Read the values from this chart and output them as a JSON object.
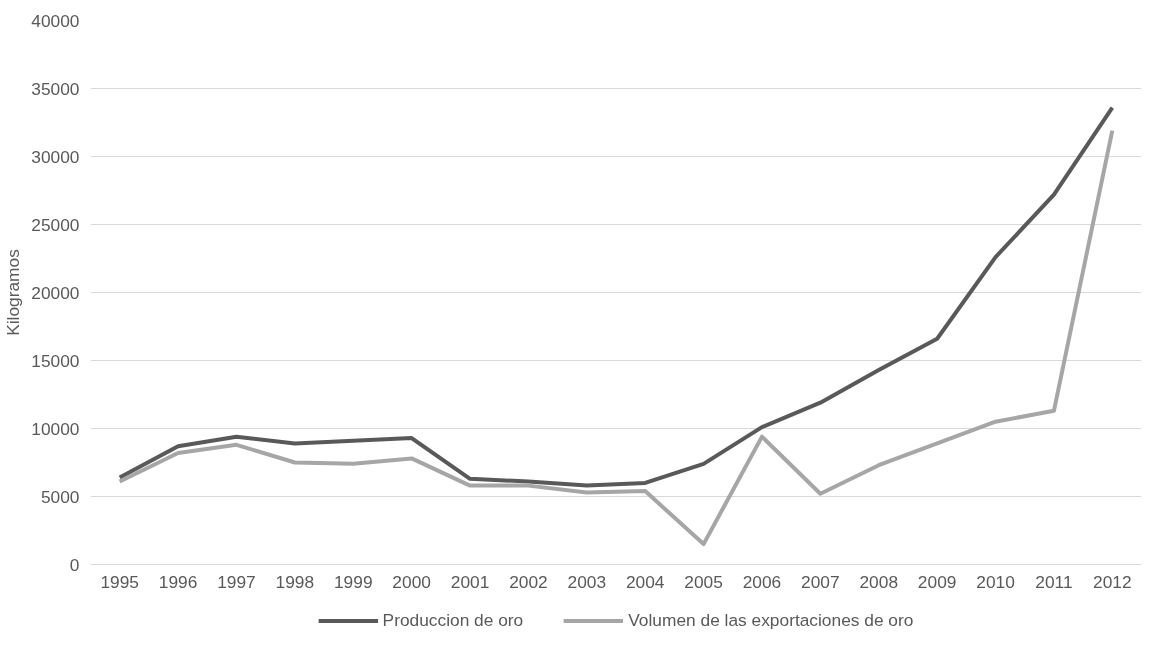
{
  "chart_data": {
    "type": "line",
    "ylabel": "Kilogramos",
    "categories": [
      "1995",
      "1996",
      "1997",
      "1998",
      "1999",
      "2000",
      "2001",
      "2002",
      "2003",
      "2004",
      "2005",
      "2006",
      "2007",
      "2008",
      "2009",
      "2010",
      "2011",
      "2012"
    ],
    "series": [
      {
        "name": "Produccion de oro",
        "color": "#595959",
        "values": [
          6400,
          8700,
          9400,
          8900,
          9100,
          9300,
          6300,
          6100,
          5800,
          6000,
          7400,
          10100,
          11900,
          14300,
          16600,
          22600,
          27200,
          33600
        ]
      },
      {
        "name": "Volumen de las exportaciones de oro",
        "color": "#a6a6a6",
        "values": [
          6100,
          8200,
          8800,
          7500,
          7400,
          7800,
          5800,
          5800,
          5300,
          5400,
          1500,
          9400,
          5200,
          7300,
          8900,
          10500,
          11300,
          31900
        ]
      }
    ],
    "ylim": [
      0,
      40000
    ],
    "yticks": [
      0,
      5000,
      10000,
      15000,
      20000,
      25000,
      30000,
      35000,
      40000
    ],
    "grid": "y",
    "legend": "bottom",
    "marker": "none",
    "line_style": "solid"
  }
}
